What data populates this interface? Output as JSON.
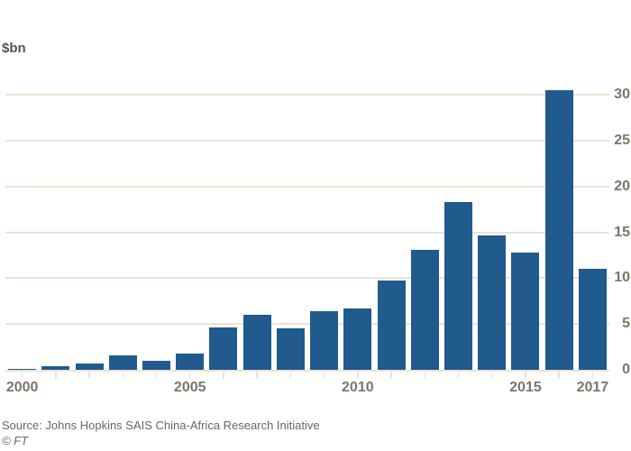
{
  "unit_label": "$bn",
  "source_line": "Source: Johns Hopkins SAIS China-Africa Research Initiative",
  "credit": "© FT",
  "colors": {
    "background": "#ffffff",
    "bar": "#215a8c",
    "grid": "#f0e2d3",
    "axis_text": "#7d746b",
    "unit_text": "#5b534c",
    "source_text": "#6f655c"
  },
  "chart_data": {
    "type": "bar",
    "title": "",
    "ylabel": "$bn",
    "xlabel": "",
    "categories": [
      "2000",
      "2001",
      "2002",
      "2003",
      "2004",
      "2005",
      "2006",
      "2007",
      "2008",
      "2009",
      "2010",
      "2011",
      "2012",
      "2013",
      "2014",
      "2015",
      "2016",
      "2017"
    ],
    "values": [
      0.13,
      0.35,
      0.65,
      1.6,
      1.0,
      1.8,
      4.6,
      6.0,
      4.5,
      6.4,
      6.7,
      9.7,
      13.1,
      18.3,
      14.7,
      12.8,
      30.5,
      11.0
    ],
    "ylim": [
      0,
      32
    ],
    "yticks": [
      0,
      5,
      10,
      15,
      20,
      25,
      30
    ],
    "labeled_years": [
      "2000",
      "2005",
      "2010",
      "2015",
      "2017"
    ],
    "grid": "horizontal",
    "y_axis_position": "right",
    "legend": "none"
  }
}
